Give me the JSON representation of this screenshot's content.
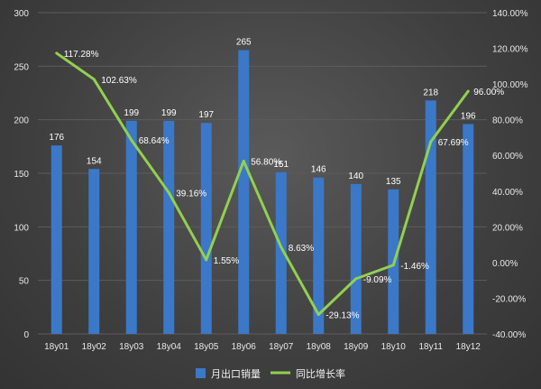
{
  "chart_data": {
    "type": "bar",
    "categories": [
      "18y01",
      "18y02",
      "18y03",
      "18y04",
      "18y05",
      "18y06",
      "18y07",
      "18y08",
      "18y09",
      "18y10",
      "18y11",
      "18y12"
    ],
    "series": [
      {
        "name": "月出口销量",
        "type": "bar",
        "axis": "left",
        "values": [
          176,
          154,
          199,
          199,
          197,
          265,
          151,
          146,
          140,
          135,
          218,
          196
        ],
        "labels": [
          "176",
          "154",
          "199",
          "199",
          "197",
          "265",
          "151",
          "146",
          "140",
          "135",
          "218",
          "196"
        ],
        "color": "#3b78c8"
      },
      {
        "name": "同比增长率",
        "type": "line",
        "axis": "right",
        "values": [
          117.28,
          102.63,
          68.64,
          39.16,
          1.55,
          56.8,
          8.63,
          -29.13,
          -9.09,
          -1.46,
          67.69,
          96.0
        ],
        "labels": [
          "117.28%",
          "102.63%",
          "68.64%",
          "39.16%",
          "1.55%",
          "56.80%",
          "8.63%",
          "-29.13%",
          "-9.09%",
          "-1.46%",
          "67.69%",
          "96.00%"
        ],
        "color": "#92d050"
      }
    ],
    "y_left": {
      "min": 0,
      "max": 300,
      "ticks": [
        "0",
        "50",
        "100",
        "150",
        "200",
        "250",
        "300"
      ]
    },
    "y_right": {
      "min": -40,
      "max": 140,
      "ticks": [
        "-40.00%",
        "-20.00%",
        "0.00%",
        "20.00%",
        "40.00%",
        "60.00%",
        "80.00%",
        "100.00%",
        "120.00%",
        "140.00%"
      ]
    },
    "grid": true,
    "legend_position": "bottom"
  }
}
